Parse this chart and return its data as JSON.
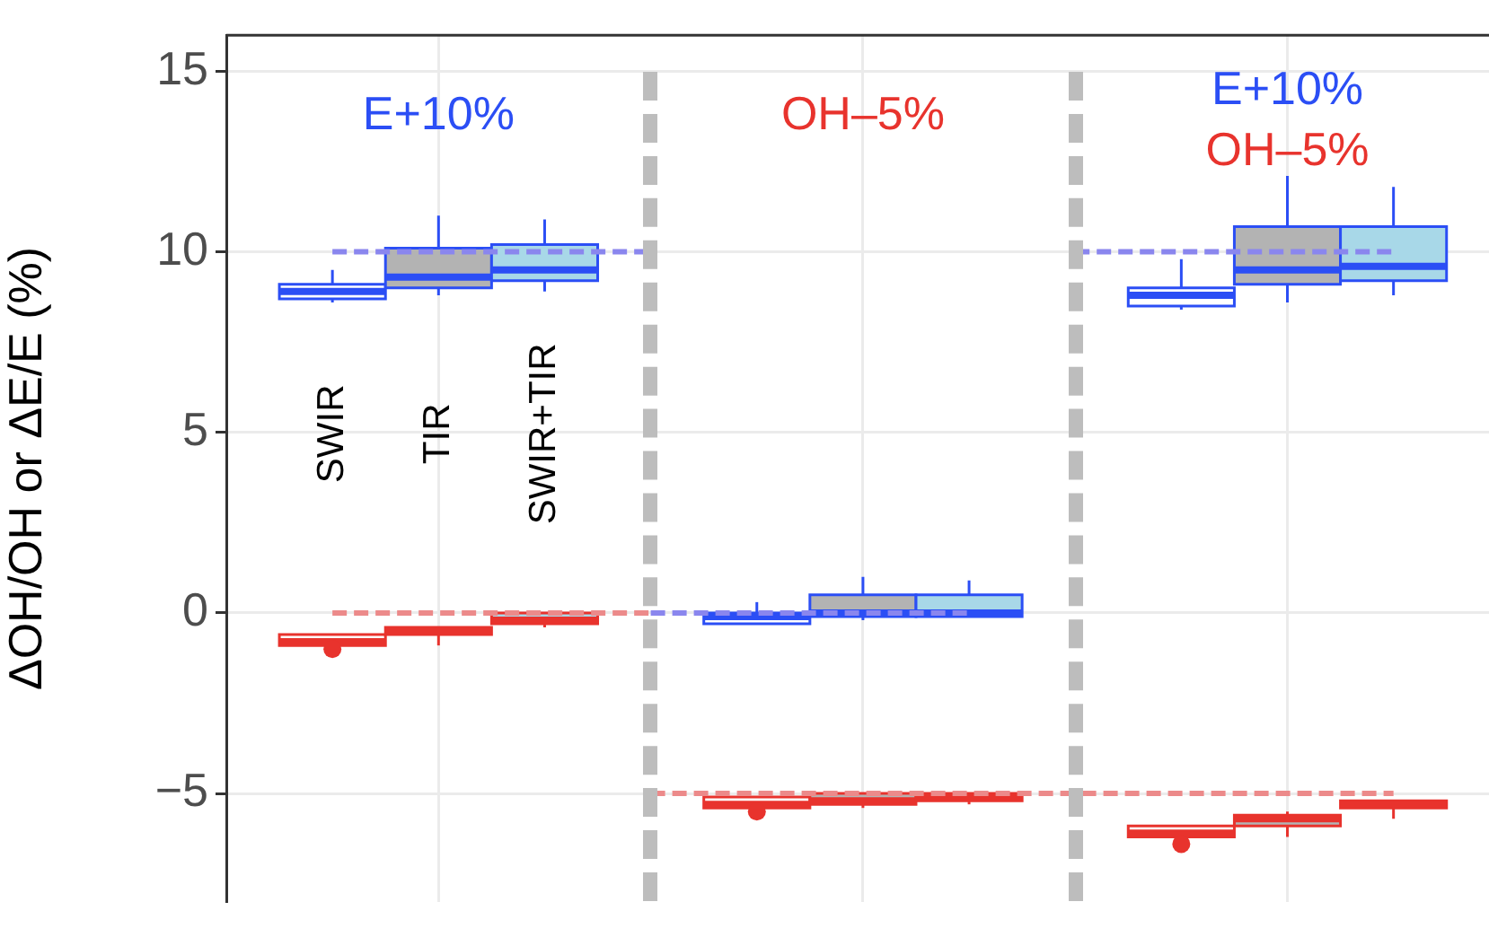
{
  "chart_data": {
    "type": "box",
    "ylabel": "ΔOH/OH or ΔE/E (%)",
    "ylim": [
      -8,
      16
    ],
    "yticks": [
      {
        "value": -5,
        "label": "−5"
      },
      0,
      5,
      10,
      15
    ],
    "grid": true,
    "categories": [
      "SWIR",
      "TIR",
      "SWIR+TIR",
      null,
      null,
      null,
      null,
      null,
      null,
      null,
      null
    ],
    "series": [
      {
        "color": "#2b4ef5",
        "colors": [
          "#ffffff",
          "#b3b3b3",
          "#a8d8e8",
          null,
          "#ffffff",
          "#b3b3b3",
          "#a8d8e8",
          null,
          "#ffffff",
          "#b3b3b3",
          "#a8d8e8"
        ],
        "boxes": [
          {
            "low": 8.6,
            "q1": 8.7,
            "median": 8.9,
            "q3": 9.1,
            "high": 9.5
          },
          {
            "low": 8.8,
            "q1": 9.0,
            "median": 9.3,
            "q3": 10.1,
            "high": 11.0
          },
          {
            "low": 8.9,
            "q1": 9.2,
            "median": 9.5,
            "q3": 10.2,
            "high": 10.9
          },
          null,
          {
            "low": -0.3,
            "q1": -0.3,
            "median": -0.1,
            "q3": 0.0,
            "high": 0.3
          },
          {
            "low": -0.2,
            "q1": -0.1,
            "median": 0.0,
            "q3": 0.5,
            "high": 1.0
          },
          {
            "low": -0.1,
            "q1": -0.1,
            "median": 0.0,
            "q3": 0.5,
            "high": 0.9
          },
          null,
          {
            "low": 8.4,
            "q1": 8.5,
            "median": 8.8,
            "q3": 9.0,
            "high": 9.8
          },
          {
            "low": 8.6,
            "q1": 9.1,
            "median": 9.5,
            "q3": 10.7,
            "high": 12.1
          },
          {
            "low": 8.8,
            "q1": 9.2,
            "median": 9.6,
            "q3": 10.7,
            "high": 11.8
          }
        ]
      },
      {
        "color": "#e8332d",
        "colors": [
          "#ffffff",
          "#b3b3b3",
          "#a8d8e8",
          null,
          "#ffffff",
          "#b3b3b3",
          "#a8d8e8",
          null,
          "#ffffff",
          "#b3b3b3",
          "#a8d8e8"
        ],
        "boxes": [
          {
            "low": -0.9,
            "q1": -0.9,
            "median": -0.8,
            "q3": -0.6,
            "high": -0.6,
            "outliers": [
              -1.0
            ]
          },
          {
            "low": -0.9,
            "q1": -0.6,
            "median": -0.5,
            "q3": -0.4,
            "high": -0.4
          },
          {
            "low": -0.4,
            "q1": -0.3,
            "median": -0.2,
            "q3": 0.0,
            "high": 0.0
          },
          null,
          {
            "low": -5.4,
            "q1": -5.4,
            "median": -5.3,
            "q3": -5.1,
            "high": -5.1,
            "outliers": [
              -5.5
            ]
          },
          {
            "low": -5.4,
            "q1": -5.3,
            "median": -5.2,
            "q3": -5.0,
            "high": -5.0
          },
          {
            "low": -5.3,
            "q1": -5.2,
            "median": -5.1,
            "q3": -5.0,
            "high": -5.0
          },
          null,
          {
            "low": -6.2,
            "q1": -6.2,
            "median": -6.1,
            "q3": -5.9,
            "high": -5.9,
            "outliers": [
              -6.4
            ]
          },
          {
            "low": -6.2,
            "q1": -5.9,
            "median": -5.7,
            "q3": -5.6,
            "high": -5.5
          },
          {
            "low": -5.7,
            "q1": -5.4,
            "median": -5.3,
            "q3": -5.2,
            "high": -5.2
          }
        ]
      },
      {
        "type": "line",
        "color": "#8a86ee",
        "values": [
          10,
          10,
          10,
          10,
          null,
          null,
          null,
          10,
          10,
          10,
          10
        ],
        "line_style": "dashed",
        "marker": "none"
      },
      {
        "type": "line",
        "color": "#ec8a8a",
        "values": [
          0,
          0,
          0,
          0,
          null,
          null,
          null,
          null,
          null,
          null,
          null
        ],
        "line_style": "dashed",
        "marker": "none"
      },
      {
        "type": "line",
        "color": "#8a86ee",
        "values": [
          null,
          null,
          null,
          0,
          0,
          0,
          0,
          null,
          null,
          null,
          null
        ],
        "line_style": "dashed",
        "marker": "none"
      },
      {
        "type": "line",
        "color": "#ec8a8a",
        "values": [
          null,
          null,
          null,
          -5,
          -5,
          -5,
          -5,
          -5,
          -5,
          -5,
          -5
        ],
        "line_style": "dashed",
        "marker": "none"
      }
    ],
    "annotations": [
      "E+10%",
      "OH–5%",
      "E+10%",
      "OH–5%"
    ]
  }
}
